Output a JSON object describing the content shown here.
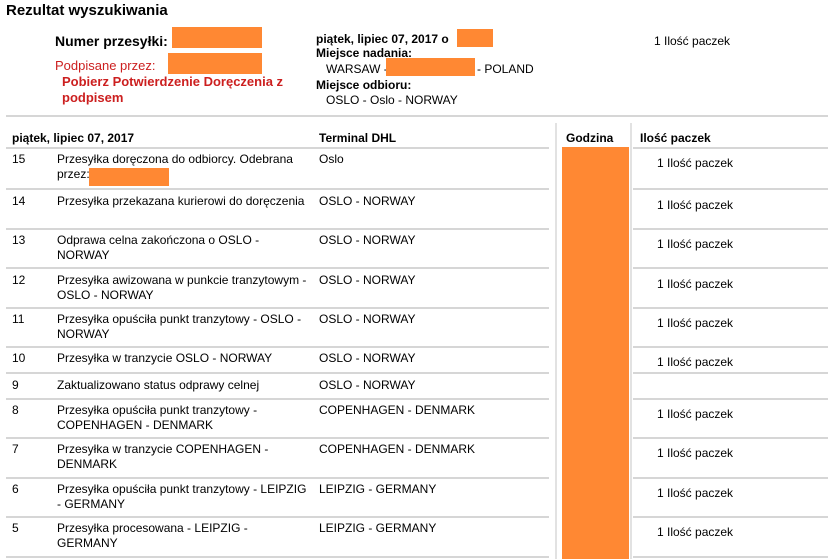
{
  "page_title": "Rezultat wyszukiwania",
  "summary": {
    "waybill_label": "Numer przesyłki:",
    "signed_label": "Podpisane przez:",
    "pod_link": "Pobierz Potwierdzenie Doręczenia z podpisem",
    "date_prefix": "piątek, lipiec 07, 2017 o",
    "origin_label": "Miejsce nadania:",
    "origin_prefix": "WARSAW -",
    "origin_suffix": "- POLAND",
    "destination_label": "Miejsce odbioru:",
    "destination_value": "OSLO - Oslo - NORWAY",
    "pieces": "1 Ilość paczek"
  },
  "table": {
    "headers": {
      "date": "piątek, lipiec 07, 2017",
      "terminal": "Terminal DHL",
      "time": "Godzina",
      "pieces": "Ilość paczek"
    },
    "rows": [
      {
        "num": "15",
        "desc": "Przesyłka doręczona do odbiorcy. Odebrana przez:",
        "terminal": "Oslo",
        "pieces": "1 Ilość paczek"
      },
      {
        "num": "14",
        "desc": "Przesyłka przekazana kurierowi do doręczenia",
        "terminal": "OSLO - NORWAY",
        "pieces": "1 Ilość paczek"
      },
      {
        "num": "13",
        "desc": "Odprawa celna zakończona o OSLO - NORWAY",
        "terminal": "OSLO - NORWAY",
        "pieces": "1 Ilość paczek"
      },
      {
        "num": "12",
        "desc": "Przesyłka awizowana w punkcie tranzytowym - OSLO - NORWAY",
        "terminal": "OSLO - NORWAY",
        "pieces": "1 Ilość paczek"
      },
      {
        "num": "11",
        "desc": "Przesyłka opuściła punkt tranzytowy - OSLO - NORWAY",
        "terminal": "OSLO - NORWAY",
        "pieces": "1 Ilość paczek"
      },
      {
        "num": "10",
        "desc": "Przesyłka w tranzycie OSLO - NORWAY",
        "terminal": "OSLO - NORWAY",
        "pieces": "1 Ilość paczek"
      },
      {
        "num": "9",
        "desc": "Zaktualizowano status odprawy celnej",
        "terminal": "OSLO - NORWAY",
        "pieces": ""
      },
      {
        "num": "8",
        "desc": "Przesyłka opuściła punkt tranzytowy - COPENHAGEN - DENMARK",
        "terminal": "COPENHAGEN - DENMARK",
        "pieces": "1 Ilość paczek"
      },
      {
        "num": "7",
        "desc": "Przesyłka w tranzycie COPENHAGEN - DENMARK",
        "terminal": "COPENHAGEN - DENMARK",
        "pieces": "1 Ilość paczek"
      },
      {
        "num": "6",
        "desc": "Przesyłka opuściła punkt tranzytowy - LEIPZIG - GERMANY",
        "terminal": "LEIPZIG - GERMANY",
        "pieces": "1 Ilość paczek"
      },
      {
        "num": "5",
        "desc": "Przesyłka procesowana - LEIPZIG - GERMANY",
        "terminal": "LEIPZIG - GERMANY",
        "pieces": "1 Ilość paczek"
      }
    ]
  },
  "colors": {
    "redaction": "#ff8833",
    "accent_red": "#cc1f1f",
    "rule": "#d6d6d6"
  }
}
